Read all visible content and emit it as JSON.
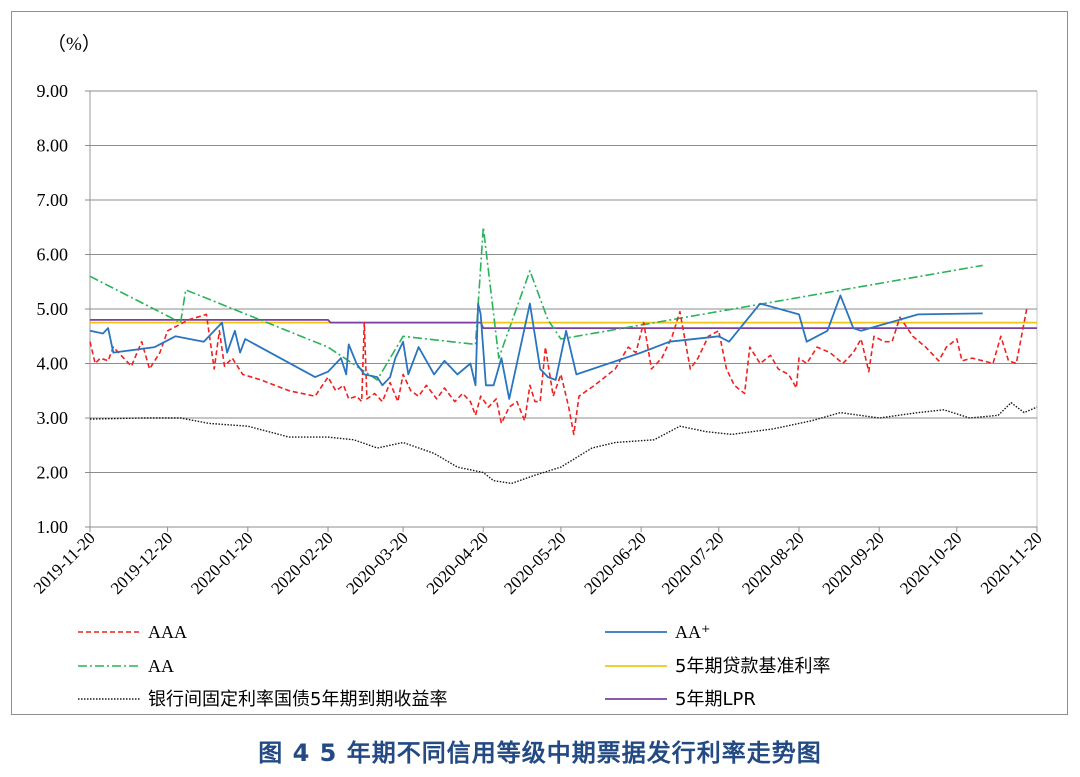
{
  "caption": "图 4 5 年期不同信用等级中期票据发行利率走势图",
  "chart_data": {
    "type": "line",
    "unit_label": "（%）",
    "ylim": [
      1.0,
      9.0
    ],
    "yticks": [
      "1.00",
      "2.00",
      "3.00",
      "4.00",
      "5.00",
      "6.00",
      "7.00",
      "8.00",
      "9.00"
    ],
    "xlim": [
      "2019-11-20",
      "2020-11-20"
    ],
    "xticks": [
      "2019-11-20",
      "2019-12-20",
      "2020-01-20",
      "2020-02-20",
      "2020-03-20",
      "2020-04-20",
      "2020-05-20",
      "2020-06-20",
      "2020-07-20",
      "2020-08-20",
      "2020-09-20",
      "2020-10-20",
      "2020-11-20"
    ],
    "grid": "horizontal",
    "legend": "bottom",
    "series": [
      {
        "name": "AAA",
        "color": "#ee2222",
        "dash": "dashed",
        "points": [
          [
            "2019-11-20",
            4.4
          ],
          [
            "2019-11-22",
            4.0
          ],
          [
            "2019-11-24",
            4.1
          ],
          [
            "2019-11-27",
            4.05
          ],
          [
            "2019-11-29",
            4.3
          ],
          [
            "2019-12-03",
            4.1
          ],
          [
            "2019-12-06",
            3.95
          ],
          [
            "2019-12-10",
            4.4
          ],
          [
            "2019-12-13",
            3.9
          ],
          [
            "2019-12-17",
            4.2
          ],
          [
            "2019-12-20",
            4.6
          ],
          [
            "2019-12-24",
            4.7
          ],
          [
            "2019-12-28",
            4.8
          ],
          [
            "2020-01-04",
            4.9
          ],
          [
            "2020-01-07",
            3.9
          ],
          [
            "2020-01-09",
            4.6
          ],
          [
            "2020-01-11",
            3.95
          ],
          [
            "2020-01-14",
            4.1
          ],
          [
            "2020-01-18",
            3.8
          ],
          [
            "2020-01-25",
            3.7
          ],
          [
            "2020-02-05",
            3.5
          ],
          [
            "2020-02-15",
            3.4
          ],
          [
            "2020-02-20",
            3.75
          ],
          [
            "2020-02-23",
            3.5
          ],
          [
            "2020-02-26",
            3.6
          ],
          [
            "2020-02-28",
            3.35
          ],
          [
            "2020-03-02",
            3.4
          ],
          [
            "2020-03-04",
            3.3
          ],
          [
            "2020-03-05",
            4.75
          ],
          [
            "2020-03-06",
            3.35
          ],
          [
            "2020-03-09",
            3.45
          ],
          [
            "2020-03-12",
            3.3
          ],
          [
            "2020-03-15",
            3.65
          ],
          [
            "2020-03-18",
            3.3
          ],
          [
            "2020-03-20",
            3.8
          ],
          [
            "2020-03-23",
            3.5
          ],
          [
            "2020-03-26",
            3.4
          ],
          [
            "2020-03-29",
            3.6
          ],
          [
            "2020-04-02",
            3.35
          ],
          [
            "2020-04-05",
            3.55
          ],
          [
            "2020-04-09",
            3.3
          ],
          [
            "2020-04-12",
            3.45
          ],
          [
            "2020-04-15",
            3.3
          ],
          [
            "2020-04-17",
            3.05
          ],
          [
            "2020-04-19",
            3.4
          ],
          [
            "2020-04-22",
            3.2
          ],
          [
            "2020-04-25",
            3.35
          ],
          [
            "2020-04-27",
            2.9
          ],
          [
            "2020-04-30",
            3.2
          ],
          [
            "2020-05-03",
            3.3
          ],
          [
            "2020-05-06",
            2.95
          ],
          [
            "2020-05-08",
            3.6
          ],
          [
            "2020-05-10",
            3.3
          ],
          [
            "2020-05-12",
            3.3
          ],
          [
            "2020-05-14",
            4.3
          ],
          [
            "2020-05-17",
            3.4
          ],
          [
            "2020-05-20",
            3.8
          ],
          [
            "2020-05-23",
            3.2
          ],
          [
            "2020-05-25",
            2.7
          ],
          [
            "2020-05-27",
            3.4
          ],
          [
            "2020-06-02",
            3.6
          ],
          [
            "2020-06-10",
            3.9
          ],
          [
            "2020-06-15",
            4.3
          ],
          [
            "2020-06-18",
            4.2
          ],
          [
            "2020-06-21",
            4.75
          ],
          [
            "2020-06-24",
            3.9
          ],
          [
            "2020-06-28",
            4.1
          ],
          [
            "2020-07-02",
            4.5
          ],
          [
            "2020-07-05",
            4.95
          ],
          [
            "2020-07-09",
            3.9
          ],
          [
            "2020-07-12",
            4.1
          ],
          [
            "2020-07-16",
            4.5
          ],
          [
            "2020-07-20",
            4.6
          ],
          [
            "2020-07-23",
            3.9
          ],
          [
            "2020-07-26",
            3.6
          ],
          [
            "2020-07-30",
            3.45
          ],
          [
            "2020-08-01",
            4.3
          ],
          [
            "2020-08-05",
            4.0
          ],
          [
            "2020-08-09",
            4.15
          ],
          [
            "2020-08-12",
            3.9
          ],
          [
            "2020-08-16",
            3.8
          ],
          [
            "2020-08-19",
            3.55
          ],
          [
            "2020-08-20",
            4.1
          ],
          [
            "2020-08-23",
            4.0
          ],
          [
            "2020-08-27",
            4.3
          ],
          [
            "2020-09-01",
            4.2
          ],
          [
            "2020-09-06",
            4.0
          ],
          [
            "2020-09-10",
            4.2
          ],
          [
            "2020-09-13",
            4.45
          ],
          [
            "2020-09-16",
            3.85
          ],
          [
            "2020-09-18",
            4.5
          ],
          [
            "2020-09-22",
            4.4
          ],
          [
            "2020-09-25",
            4.4
          ],
          [
            "2020-09-28",
            4.85
          ],
          [
            "2020-10-03",
            4.5
          ],
          [
            "2020-10-08",
            4.3
          ],
          [
            "2020-10-13",
            4.05
          ],
          [
            "2020-10-16",
            4.3
          ],
          [
            "2020-10-20",
            4.45
          ],
          [
            "2020-10-22",
            4.05
          ],
          [
            "2020-10-26",
            4.1
          ],
          [
            "2020-10-30",
            4.05
          ],
          [
            "2020-11-03",
            4.0
          ],
          [
            "2020-11-06",
            4.5
          ],
          [
            "2020-11-09",
            4.05
          ],
          [
            "2020-11-12",
            4.0
          ],
          [
            "2020-11-16",
            5.0
          ]
        ]
      },
      {
        "name": "AA⁺",
        "color": "#2a75bd",
        "dash": "solid",
        "points": [
          [
            "2019-11-20",
            4.6
          ],
          [
            "2019-11-25",
            4.55
          ],
          [
            "2019-11-27",
            4.65
          ],
          [
            "2019-11-29",
            4.2
          ],
          [
            "2019-12-15",
            4.3
          ],
          [
            "2019-12-23",
            4.5
          ],
          [
            "2020-01-03",
            4.4
          ],
          [
            "2020-01-10",
            4.75
          ],
          [
            "2020-01-12",
            4.2
          ],
          [
            "2020-01-15",
            4.6
          ],
          [
            "2020-01-17",
            4.2
          ],
          [
            "2020-01-19",
            4.45
          ],
          [
            "2020-02-15",
            3.75
          ],
          [
            "2020-02-20",
            3.85
          ],
          [
            "2020-02-25",
            4.1
          ],
          [
            "2020-02-27",
            3.8
          ],
          [
            "2020-02-28",
            4.35
          ],
          [
            "2020-03-02",
            4.0
          ],
          [
            "2020-03-05",
            3.8
          ],
          [
            "2020-03-10",
            3.75
          ],
          [
            "2020-03-12",
            3.6
          ],
          [
            "2020-03-15",
            3.75
          ],
          [
            "2020-03-17",
            4.1
          ],
          [
            "2020-03-20",
            4.4
          ],
          [
            "2020-03-22",
            3.8
          ],
          [
            "2020-03-26",
            4.3
          ],
          [
            "2020-04-01",
            3.8
          ],
          [
            "2020-04-05",
            4.05
          ],
          [
            "2020-04-10",
            3.8
          ],
          [
            "2020-04-15",
            4.0
          ],
          [
            "2020-04-17",
            3.6
          ],
          [
            "2020-04-18",
            5.1
          ],
          [
            "2020-04-19",
            4.9
          ],
          [
            "2020-04-21",
            3.6
          ],
          [
            "2020-04-24",
            3.6
          ],
          [
            "2020-04-27",
            4.1
          ],
          [
            "2020-04-30",
            3.35
          ],
          [
            "2020-05-08",
            5.1
          ],
          [
            "2020-05-12",
            3.9
          ],
          [
            "2020-05-15",
            3.75
          ],
          [
            "2020-05-18",
            3.7
          ],
          [
            "2020-05-22",
            4.6
          ],
          [
            "2020-05-26",
            3.8
          ],
          [
            "2020-06-20",
            4.2
          ],
          [
            "2020-07-01",
            4.4
          ],
          [
            "2020-07-20",
            4.5
          ],
          [
            "2020-07-24",
            4.4
          ],
          [
            "2020-08-05",
            5.1
          ],
          [
            "2020-08-20",
            4.9
          ],
          [
            "2020-08-23",
            4.4
          ],
          [
            "2020-08-31",
            4.6
          ],
          [
            "2020-09-05",
            5.25
          ],
          [
            "2020-09-10",
            4.65
          ],
          [
            "2020-09-13",
            4.6
          ],
          [
            "2020-10-05",
            4.9
          ],
          [
            "2020-10-30",
            4.92
          ]
        ]
      },
      {
        "name": "AA",
        "color": "#29b35a",
        "dash": "dashdot",
        "points": [
          [
            "2019-11-20",
            5.6
          ],
          [
            "2019-12-25",
            4.75
          ],
          [
            "2019-12-27",
            5.35
          ],
          [
            "2020-02-20",
            4.3
          ],
          [
            "2020-03-10",
            3.7
          ],
          [
            "2020-03-20",
            4.5
          ],
          [
            "2020-04-17",
            4.35
          ],
          [
            "2020-04-20",
            6.5
          ],
          [
            "2020-04-26",
            4.1
          ],
          [
            "2020-05-08",
            5.7
          ],
          [
            "2020-05-15",
            4.8
          ],
          [
            "2020-05-20",
            4.45
          ],
          [
            "2020-10-30",
            5.8
          ]
        ]
      },
      {
        "name": "5年期贷款基准利率",
        "color": "#f0c419",
        "dash": "solid",
        "points": [
          [
            "2019-11-20",
            4.75
          ],
          [
            "2020-11-20",
            4.75
          ]
        ]
      },
      {
        "name": "银行间固定利率国债5年期到期收益率",
        "color": "#1a1a1a",
        "dash": "dotted",
        "points": [
          [
            "2019-11-20",
            2.98
          ],
          [
            "2019-12-10",
            3.0
          ],
          [
            "2019-12-25",
            3.0
          ],
          [
            "2020-01-05",
            2.9
          ],
          [
            "2020-01-20",
            2.85
          ],
          [
            "2020-02-05",
            2.65
          ],
          [
            "2020-02-20",
            2.65
          ],
          [
            "2020-03-01",
            2.6
          ],
          [
            "2020-03-10",
            2.45
          ],
          [
            "2020-03-20",
            2.55
          ],
          [
            "2020-04-01",
            2.35
          ],
          [
            "2020-04-10",
            2.1
          ],
          [
            "2020-04-20",
            2.0
          ],
          [
            "2020-04-24",
            1.85
          ],
          [
            "2020-05-01",
            1.8
          ],
          [
            "2020-05-10",
            1.95
          ],
          [
            "2020-05-20",
            2.1
          ],
          [
            "2020-06-01",
            2.45
          ],
          [
            "2020-06-10",
            2.55
          ],
          [
            "2020-06-25",
            2.6
          ],
          [
            "2020-07-05",
            2.85
          ],
          [
            "2020-07-15",
            2.75
          ],
          [
            "2020-07-25",
            2.7
          ],
          [
            "2020-08-10",
            2.8
          ],
          [
            "2020-08-25",
            2.95
          ],
          [
            "2020-09-05",
            3.1
          ],
          [
            "2020-09-20",
            3.0
          ],
          [
            "2020-10-05",
            3.1
          ],
          [
            "2020-10-15",
            3.15
          ],
          [
            "2020-10-25",
            3.0
          ],
          [
            "2020-11-05",
            3.05
          ],
          [
            "2020-11-10",
            3.28
          ],
          [
            "2020-11-15",
            3.1
          ],
          [
            "2020-11-20",
            3.2
          ]
        ]
      },
      {
        "name": "5年期LPR",
        "color": "#7b3fa0",
        "dash": "solid",
        "points": [
          [
            "2019-11-20",
            4.8
          ],
          [
            "2020-02-20",
            4.8
          ],
          [
            "2020-02-21",
            4.75
          ],
          [
            "2020-04-19",
            4.75
          ],
          [
            "2020-04-20",
            4.65
          ],
          [
            "2020-11-20",
            4.65
          ]
        ]
      }
    ]
  }
}
